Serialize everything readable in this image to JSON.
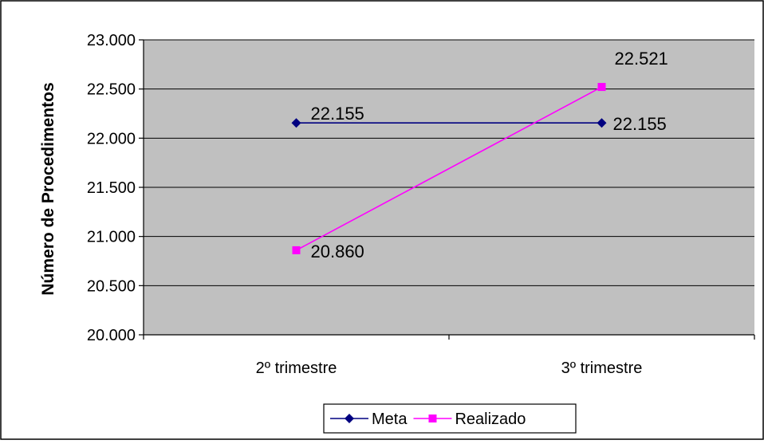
{
  "chart_data": {
    "type": "line",
    "title": "",
    "xlabel": "",
    "ylabel": "Número de Procedimentos",
    "categories": [
      "2º trimestre",
      "3º trimestre"
    ],
    "ylim": [
      20000,
      23000
    ],
    "ytick_labels": [
      "23.000",
      "22.500",
      "22.000",
      "21.500",
      "21.000",
      "20.500",
      "20.000"
    ],
    "ytick_values": [
      23000,
      22500,
      22000,
      21500,
      21000,
      20500,
      20000
    ],
    "grid": true,
    "legend_position": "bottom",
    "series": [
      {
        "name": "Meta",
        "values": [
          22155,
          22155
        ],
        "labels": [
          "22.155",
          "22.155"
        ],
        "color": "#000080",
        "marker": "diamond"
      },
      {
        "name": "Realizado",
        "values": [
          20860,
          22521
        ],
        "labels": [
          "20.860",
          "22.521"
        ],
        "color": "#ff00ff",
        "marker": "square"
      }
    ],
    "colors": {
      "plot_background": "#c0c0c0",
      "gridline": "#000000"
    }
  }
}
